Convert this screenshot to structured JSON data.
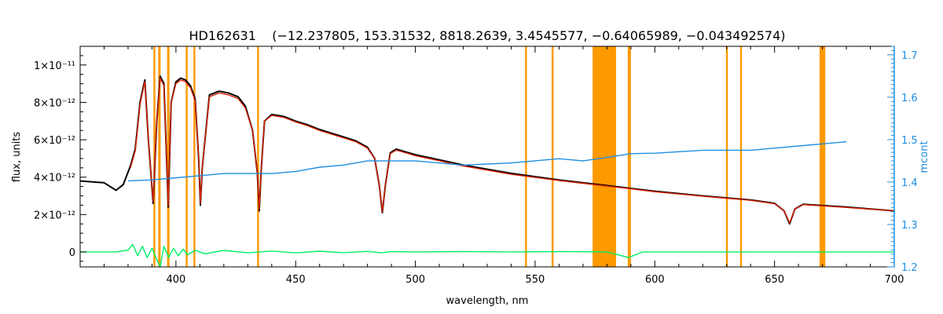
{
  "chart_data": {
    "type": "line",
    "title": "HD162631    (−12.237805, 153.31532, 8818.2639, 3.4545577, −0.64065989, −0.043492574)",
    "xlabel": "wavelength, nm",
    "ylabel": "flux, units",
    "y2label": "mcont",
    "xlim": [
      360,
      700
    ],
    "ylim": [
      -8e-13,
      1.1e-11
    ],
    "y2lim": [
      1.2,
      1.72
    ],
    "grid": false,
    "x_ticks": [
      400,
      450,
      500,
      550,
      600,
      650,
      700
    ],
    "x_tick_labels": [
      "400",
      "450",
      "500",
      "550",
      "600",
      "650",
      "700"
    ],
    "y_ticks": [
      0,
      2e-12,
      4e-12,
      6e-12,
      8e-12,
      1e-11
    ],
    "y_tick_labels": [
      "0",
      "2×10⁻¹²",
      "4×10⁻¹²",
      "6×10⁻¹²",
      "8×10⁻¹²",
      "1×10⁻¹¹"
    ],
    "y2_ticks": [
      1.2,
      1.3,
      1.4,
      1.5,
      1.6,
      1.7
    ],
    "y2_tick_labels": [
      "1.2",
      "1.3",
      "1.4",
      "1.5",
      "1.6",
      "1.7"
    ],
    "masked_regions": [
      [
        390.6,
        391.4
      ],
      [
        392.6,
        393.6
      ],
      [
        396.3,
        397.3
      ],
      [
        404.1,
        404.9
      ],
      [
        407.3,
        408.1
      ],
      [
        433.9,
        434.7
      ],
      [
        545.8,
        546.6
      ],
      [
        556.9,
        557.7
      ],
      [
        574.0,
        583.8
      ],
      [
        588.7,
        590.0
      ],
      [
        629.7,
        630.5
      ],
      [
        635.6,
        636.4
      ],
      [
        668.8,
        671.2
      ]
    ],
    "series": [
      {
        "axis": "left",
        "color": "#000000",
        "x": [
          360,
          370,
          375,
          378,
          381,
          383,
          385,
          387,
          388.5,
          390.5,
          392,
          393.4,
          395,
          396.8,
          398,
          400,
          402,
          404,
          406,
          408,
          409.5,
          410.2,
          411,
          414,
          418,
          422,
          426,
          429,
          432,
          434,
          434.8,
          435.6,
          437,
          440,
          445,
          450,
          455,
          460,
          465,
          470,
          475,
          480,
          483,
          485,
          486.2,
          487.5,
          489.5,
          492,
          500,
          520,
          540,
          560,
          580,
          590,
          600,
          620,
          640,
          650,
          654,
          656.3,
          658.5,
          662,
          680,
          700
        ],
        "y": [
          3.8e-12,
          3.7e-12,
          3.3e-12,
          3.6e-12,
          4.6e-12,
          5.5e-12,
          8e-12,
          9.2e-12,
          6e-12,
          2.6e-12,
          7e-12,
          9.4e-12,
          9e-12,
          2.4e-12,
          8e-12,
          9.1e-12,
          9.3e-12,
          9.2e-12,
          8.9e-12,
          8.2e-12,
          5e-12,
          2.5e-12,
          4.5e-12,
          8.4e-12,
          8.6e-12,
          8.5e-12,
          8.3e-12,
          7.8e-12,
          6.5e-12,
          4.2e-12,
          2.2e-12,
          4.4e-12,
          7e-12,
          7.35e-12,
          7.25e-12,
          7e-12,
          6.8e-12,
          6.55e-12,
          6.35e-12,
          6.15e-12,
          5.95e-12,
          5.6e-12,
          5e-12,
          3.5e-12,
          2.1e-12,
          3.6e-12,
          5.3e-12,
          5.5e-12,
          5.2e-12,
          4.65e-12,
          4.2e-12,
          3.85e-12,
          3.55e-12,
          3.4e-12,
          3.25e-12,
          3e-12,
          2.78e-12,
          2.6e-12,
          2.2e-12,
          1.5e-12,
          2.3e-12,
          2.55e-12,
          2.4e-12,
          2.2e-12
        ]
      },
      {
        "axis": "left",
        "color": "#dd2200",
        "x": [
          381,
          383,
          385,
          387,
          388.5,
          390.5,
          392,
          393.4,
          395,
          396.8,
          398,
          400,
          402,
          404,
          406,
          408,
          409.5,
          410.2,
          411,
          414,
          418,
          422,
          426,
          429,
          432,
          434,
          434.8,
          435.6,
          437,
          440,
          445,
          450,
          455,
          460,
          465,
          470,
          475,
          480,
          483,
          485,
          486.2,
          487.5,
          489.5,
          492,
          500,
          520,
          540,
          560,
          580,
          590,
          600,
          620,
          640,
          650,
          654,
          656.3,
          658.5,
          662,
          680,
          700
        ],
        "y": [
          4.5e-12,
          5.4e-12,
          7.9e-12,
          9.1e-12,
          6e-12,
          2.7e-12,
          7e-12,
          9.3e-12,
          8.9e-12,
          2.5e-12,
          8e-12,
          9e-12,
          9.2e-12,
          9.1e-12,
          8.8e-12,
          8.1e-12,
          5e-12,
          2.6e-12,
          4.5e-12,
          8.3e-12,
          8.5e-12,
          8.4e-12,
          8.2e-12,
          7.7e-12,
          6.5e-12,
          4.2e-12,
          2.3e-12,
          4.4e-12,
          7e-12,
          7.3e-12,
          7.2e-12,
          6.95e-12,
          6.75e-12,
          6.5e-12,
          6.3e-12,
          6.1e-12,
          5.9e-12,
          5.55e-12,
          5e-12,
          3.5e-12,
          2.15e-12,
          3.6e-12,
          5.25e-12,
          5.45e-12,
          5.15e-12,
          4.6e-12,
          4.15e-12,
          3.82e-12,
          3.52e-12,
          3.38e-12,
          3.22e-12,
          2.98e-12,
          2.76e-12,
          2.58e-12,
          2.2e-12,
          1.55e-12,
          2.3e-12,
          2.53e-12,
          2.38e-12,
          2.2e-12
        ]
      },
      {
        "axis": "left",
        "color": "#00ee66",
        "x": [
          360,
          375,
          380,
          382,
          384,
          386,
          388,
          390,
          392,
          393.4,
          395,
          397,
          399,
          401,
          403,
          405,
          408,
          412,
          420,
          430,
          440,
          450,
          460,
          470,
          480,
          486,
          490,
          500,
          520,
          540,
          560,
          580,
          589,
          595,
          620,
          650,
          680,
          700
        ],
        "y": [
          0.0,
          0.0,
          1e-13,
          4e-13,
          -2e-13,
          3e-13,
          -3e-13,
          2e-13,
          -4e-13,
          -8e-13,
          3e-13,
          -3e-13,
          2e-13,
          -2e-13,
          1.5e-13,
          -1.5e-13,
          1e-13,
          -1e-13,
          8e-14,
          -5e-14,
          5e-14,
          -5e-14,
          4e-14,
          -4e-14,
          3e-14,
          -5e-14,
          2e-14,
          0.0,
          2e-14,
          0.0,
          2e-14,
          0.0,
          -3e-13,
          0.0,
          0.0,
          0.0,
          0.0,
          0.0
        ]
      },
      {
        "axis": "right",
        "color": "#1f8fe0",
        "x": [
          380,
          390,
          400,
          410,
          420,
          440,
          450,
          460,
          470,
          480,
          500,
          520,
          540,
          560,
          570,
          580,
          590,
          600,
          620,
          640,
          650,
          660,
          670,
          680
        ],
        "y": [
          1.403,
          1.405,
          1.41,
          1.415,
          1.42,
          1.42,
          1.425,
          1.435,
          1.44,
          1.45,
          1.45,
          1.44,
          1.445,
          1.455,
          1.45,
          1.458,
          1.467,
          1.468,
          1.475,
          1.475,
          1.48,
          1.485,
          1.49,
          1.495
        ]
      }
    ]
  }
}
